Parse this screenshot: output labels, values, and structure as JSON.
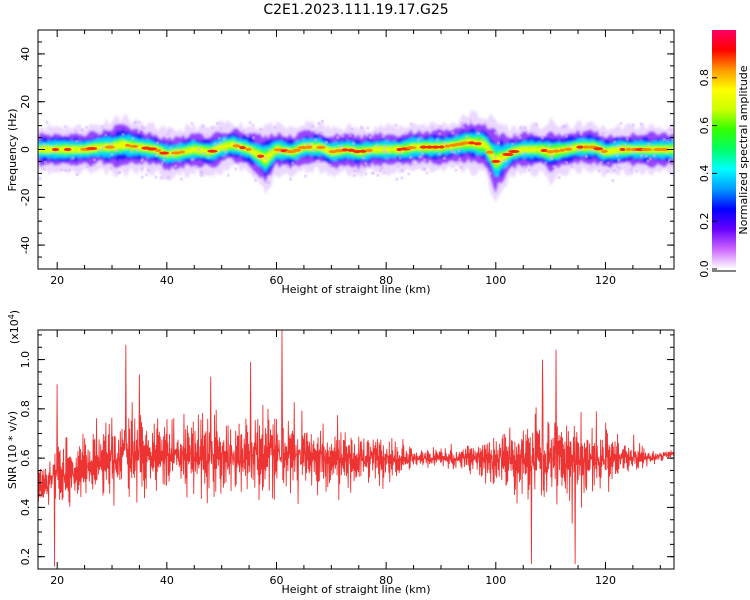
{
  "figure": {
    "title": "C2E1.2023.111.19.17.G25"
  },
  "chart_data": [
    {
      "type": "heatmap",
      "xlabel": "Height of straight line (km)",
      "ylabel": "Frequency (Hz)",
      "xlim": [
        16.5,
        132.5
      ],
      "ylim": [
        -50,
        50
      ],
      "xticks": [
        20,
        40,
        60,
        80,
        100,
        120
      ],
      "yticks": [
        40,
        20,
        0,
        -20,
        -40
      ],
      "colorbar": {
        "label": "Normalized spectral amplitude",
        "range": [
          0,
          1
        ],
        "ticks": [
          0.0,
          0.2,
          0.4,
          0.6,
          0.8
        ],
        "colors": [
          "#ffffff",
          "#cc66ff",
          "#6600ff",
          "#0000ff",
          "#0099ff",
          "#00ffff",
          "#00ff66",
          "#33ff00",
          "#ccff00",
          "#ffff00",
          "#ff9900",
          "#ff0000",
          "#ff0066"
        ]
      },
      "centerline_x": [
        16.5,
        20,
        25,
        28,
        30,
        32,
        35,
        38,
        40,
        43,
        45,
        48,
        50,
        52,
        55,
        58,
        60,
        63,
        65,
        68,
        70,
        73,
        75,
        78,
        80,
        83,
        85,
        88,
        90,
        93,
        95,
        98,
        100,
        103,
        105,
        108,
        110,
        113,
        115,
        118,
        120,
        123,
        125,
        128,
        132.5
      ],
      "centerline_freq": [
        0,
        0,
        0,
        1,
        1,
        2,
        1,
        0,
        -2,
        -1,
        0,
        -1,
        1,
        2,
        0,
        -4,
        0,
        -1,
        1,
        1,
        -1,
        0,
        -1,
        0,
        0,
        0,
        1,
        1,
        1,
        2,
        3,
        2,
        -5,
        -1,
        0,
        0,
        -1,
        0,
        1,
        1,
        -1,
        0,
        0,
        0,
        0
      ],
      "band_halfwidth": [
        4,
        4,
        4,
        4,
        5,
        5,
        4,
        4,
        4,
        4,
        4,
        4,
        4,
        4,
        4,
        6,
        4,
        4,
        4,
        4,
        4,
        4,
        4,
        4,
        4,
        4,
        4,
        4,
        4,
        4,
        5,
        5,
        7,
        4,
        4,
        4,
        5,
        4,
        4,
        4,
        4,
        4,
        4,
        4,
        4
      ]
    },
    {
      "type": "line",
      "xlabel": "Height of straight line (km)",
      "ylabel": "SNR (10 * v/v)",
      "multiplier": "(x10",
      "multiplier_exp": "4",
      "multiplier_close": ")",
      "xlim": [
        16.5,
        132.5
      ],
      "ylim": [
        0.15,
        1.12
      ],
      "xticks": [
        20,
        40,
        60,
        80,
        100,
        120
      ],
      "yticks": [
        0.2,
        0.4,
        0.6,
        0.8,
        1.0
      ],
      "ytick_labels": [
        "0.2",
        "0.4",
        "0.6",
        "0.8",
        "1.0"
      ],
      "series": [
        {
          "color": "#ee3333",
          "mean_x": [
            16.5,
            20,
            30,
            40,
            50,
            60,
            70,
            80,
            85,
            90,
            95,
            100,
            105,
            110,
            115,
            120,
            125,
            128,
            132.5
          ],
          "mean_y": [
            0.48,
            0.52,
            0.6,
            0.62,
            0.6,
            0.62,
            0.6,
            0.6,
            0.6,
            0.6,
            0.6,
            0.6,
            0.6,
            0.6,
            0.6,
            0.6,
            0.6,
            0.6,
            0.62
          ],
          "amplitude": [
            0.12,
            0.2,
            0.26,
            0.24,
            0.24,
            0.26,
            0.2,
            0.16,
            0.06,
            0.05,
            0.1,
            0.16,
            0.24,
            0.3,
            0.26,
            0.18,
            0.1,
            0.04,
            0.02
          ],
          "peaks": [
            [
              32.5,
              1.06
            ],
            [
              55.3,
              0.99
            ],
            [
              61,
              1.12
            ],
            [
              108.5,
              1.0
            ],
            [
              111,
              1.04
            ],
            [
              20,
              0.9
            ],
            [
              35,
              0.94
            ],
            [
              48,
              0.93
            ],
            [
              19.5,
              0.16
            ],
            [
              106.5,
              0.17
            ],
            [
              114.5,
              0.17
            ]
          ]
        }
      ]
    }
  ]
}
